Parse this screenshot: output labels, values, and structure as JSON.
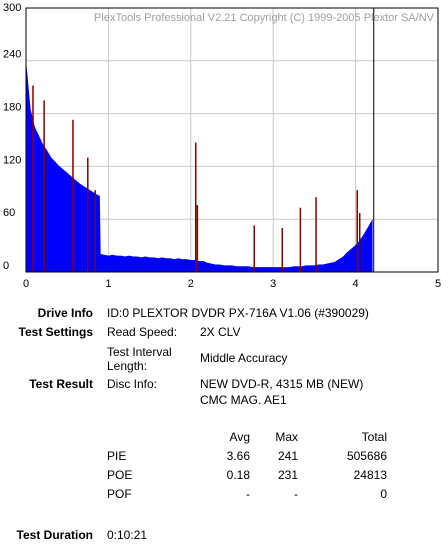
{
  "chart_data": {
    "type": "area",
    "title": "PlexTools Professional V2.21 Copyright (C) 1999-2005 Plextor SA/NV",
    "xlim": [
      0,
      5
    ],
    "ylim": [
      0,
      300
    ],
    "xticks": [
      0,
      1,
      2,
      3,
      4,
      5
    ],
    "yticks": [
      0,
      60,
      120,
      180,
      240,
      300
    ],
    "grid": true,
    "color": "#0000ff",
    "x": [
      0,
      0.05,
      0.1,
      0.15,
      0.2,
      0.25,
      0.3,
      0.35,
      0.4,
      0.45,
      0.5,
      0.55,
      0.6,
      0.65,
      0.7,
      0.75,
      0.8,
      0.85,
      0.89,
      0.9,
      0.95,
      1.0,
      1.05,
      1.1,
      1.15,
      1.2,
      1.25,
      1.3,
      1.35,
      1.4,
      1.45,
      1.5,
      1.55,
      1.6,
      1.65,
      1.7,
      1.75,
      1.8,
      1.85,
      1.9,
      1.95,
      2.0,
      2.05,
      2.1,
      2.15,
      2.2,
      2.25,
      2.3,
      2.35,
      2.4,
      2.45,
      2.5,
      2.55,
      2.6,
      2.65,
      2.7,
      2.75,
      2.8,
      2.85,
      2.9,
      2.95,
      3.0,
      3.05,
      3.1,
      3.15,
      3.2,
      3.25,
      3.3,
      3.35,
      3.4,
      3.45,
      3.5,
      3.55,
      3.6,
      3.65,
      3.7,
      3.75,
      3.8,
      3.85,
      3.9,
      3.95,
      4.0,
      4.05,
      4.1,
      4.15,
      4.2
    ],
    "values": [
      235,
      185,
      165,
      155,
      145,
      138,
      130,
      125,
      120,
      116,
      112,
      108,
      104,
      100,
      97,
      94,
      91,
      88,
      86,
      20,
      19,
      18,
      19,
      18,
      18,
      17,
      18,
      17,
      17,
      16,
      17,
      16,
      16,
      15,
      16,
      15,
      15,
      14,
      15,
      14,
      14,
      13,
      13,
      12,
      12,
      10,
      9,
      8,
      8,
      7,
      7,
      7,
      6,
      6,
      6,
      6,
      5,
      5,
      5,
      5,
      5,
      5,
      5,
      5,
      5,
      5,
      6,
      6,
      6,
      7,
      7,
      7,
      8,
      8,
      9,
      10,
      11,
      14,
      17,
      22,
      26,
      30,
      35,
      42,
      50,
      58
    ],
    "spikes": {
      "color": "#800000",
      "x": [
        0.085,
        0.22,
        0.57,
        0.75,
        0.84,
        2.06,
        2.08,
        2.77,
        3.11,
        3.33,
        3.52,
        4.02,
        4.05
      ],
      "values": [
        212,
        195,
        173,
        130,
        93,
        147,
        76,
        53,
        50,
        73,
        85,
        93,
        67
      ]
    },
    "disc_end": 4.22
  },
  "report": {
    "drive_info": {
      "label": "Drive Info",
      "value": "ID:0 PLEXTOR DVDR PX-716A V1.06 (#390029)"
    },
    "test_settings": {
      "label": "Test Settings",
      "read_speed": {
        "label": "Read Speed:",
        "value": "2X CLV"
      },
      "interval": {
        "label": [
          "Test Interval",
          "Length:"
        ],
        "value": "Middle Accuracy"
      }
    },
    "test_result": {
      "label": "Test Result",
      "disc_info": {
        "label": "Disc Info:",
        "lines": [
          "NEW DVD-R, 4315 MB (NEW)",
          "CMC MAG. AE1"
        ]
      },
      "table": {
        "columns": [
          "Avg",
          "Max",
          "Total"
        ],
        "rows": [
          {
            "name": "PIE",
            "cells": [
              3.66,
              241,
              505686
            ]
          },
          {
            "name": "POE",
            "cells": [
              0.18,
              231,
              24813
            ]
          },
          {
            "name": "POF",
            "cells": [
              "-",
              "-",
              0
            ]
          }
        ]
      }
    },
    "test_duration": {
      "label": "Test Duration",
      "value": "0:10:21"
    }
  }
}
